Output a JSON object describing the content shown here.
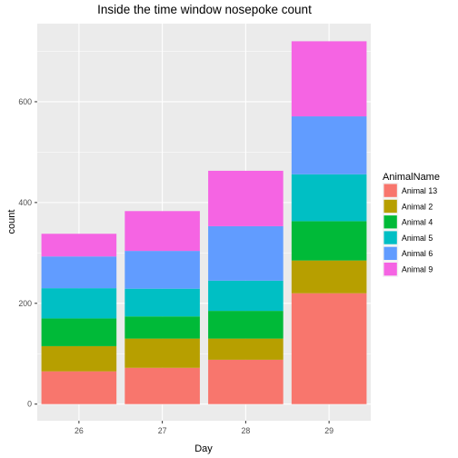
{
  "chart_data": {
    "type": "bar",
    "stacked": true,
    "title": "Inside the time window nosepoke count",
    "xlabel": "Day",
    "ylabel": "count",
    "categories": [
      "26",
      "27",
      "28",
      "29"
    ],
    "yticks": [
      0,
      200,
      400,
      600
    ],
    "ylim": [
      -33,
      755
    ],
    "grid": true,
    "legend": {
      "title": "AnimalName",
      "position": "right"
    },
    "series": [
      {
        "name": "Animal 13",
        "color": "#F8766D",
        "values": [
          65,
          72,
          88,
          220
        ]
      },
      {
        "name": "Animal 2",
        "color": "#B79F00",
        "values": [
          50,
          58,
          42,
          65
        ]
      },
      {
        "name": "Animal 4",
        "color": "#00BA38",
        "values": [
          55,
          44,
          55,
          78
        ]
      },
      {
        "name": "Animal 5",
        "color": "#00BFC4",
        "values": [
          60,
          55,
          60,
          93
        ]
      },
      {
        "name": "Animal 6",
        "color": "#619CFF",
        "values": [
          63,
          75,
          108,
          115
        ]
      },
      {
        "name": "Animal 9",
        "color": "#F564E3",
        "values": [
          45,
          79,
          110,
          149
        ]
      }
    ]
  }
}
